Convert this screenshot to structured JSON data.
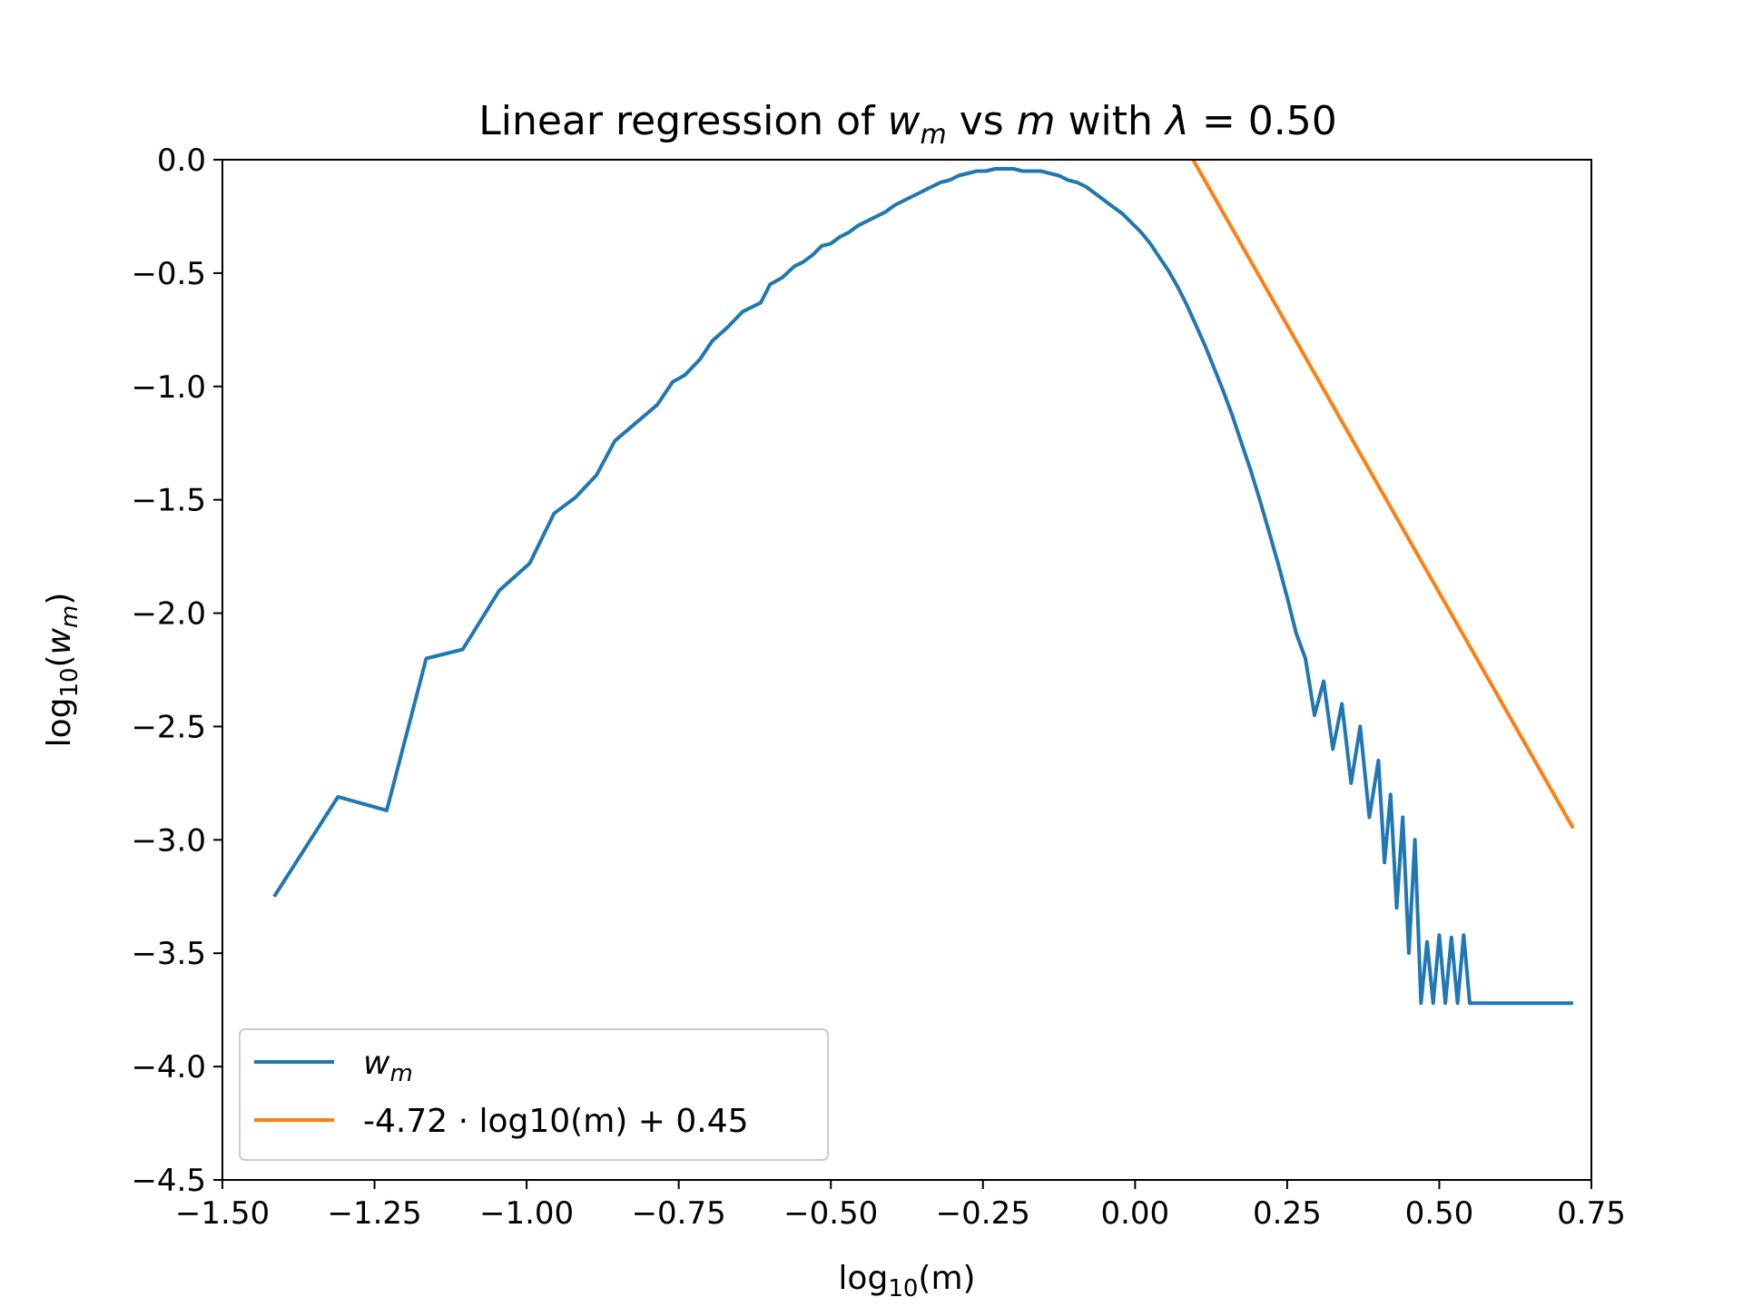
{
  "chart_data": {
    "type": "line",
    "title": {
      "prefix": "Linear regression of ",
      "var_w": "w",
      "sub_m": "m",
      "mid": " vs ",
      "var_m": "m",
      "suffix_pre": " with ",
      "lambda": "λ",
      "suffix_post": " = 0.50"
    },
    "xlabel": {
      "pre": "log",
      "sub": "10",
      "post": "(m)"
    },
    "ylabel": {
      "pre": "log",
      "sub": "10",
      "paren_open": "(",
      "var": "w",
      "var_sub": "m",
      "paren_close": ")"
    },
    "xlim": [
      -1.5,
      0.75
    ],
    "ylim": [
      -4.5,
      0.0
    ],
    "x_ticks": [
      -1.5,
      -1.25,
      -1.0,
      -0.75,
      -0.5,
      -0.25,
      0.0,
      0.25,
      0.5,
      0.75
    ],
    "x_tick_labels": [
      "−1.50",
      "−1.25",
      "−1.00",
      "−0.75",
      "−0.50",
      "−0.25",
      "0.00",
      "0.25",
      "0.50",
      "0.75"
    ],
    "y_ticks": [
      0.0,
      -0.5,
      -1.0,
      -1.5,
      -2.0,
      -2.5,
      -3.0,
      -3.5,
      -4.0,
      -4.5
    ],
    "y_tick_labels": [
      "0.0",
      "−0.5",
      "−1.0",
      "−1.5",
      "−2.0",
      "−2.5",
      "−3.0",
      "−3.5",
      "−4.0",
      "−4.5"
    ],
    "grid": false,
    "legend_position": "lower-left",
    "series": [
      {
        "name": "w",
        "name_sub": "m",
        "color": "#1f77b4",
        "x": [
          -1.415,
          -1.31,
          -1.23,
          -1.165,
          -1.105,
          -1.045,
          -0.995,
          -0.955,
          -0.92,
          -0.885,
          -0.855,
          -0.82,
          -0.785,
          -0.76,
          -0.74,
          -0.715,
          -0.695,
          -0.67,
          -0.645,
          -0.63,
          -0.615,
          -0.6,
          -0.58,
          -0.56,
          -0.545,
          -0.53,
          -0.515,
          -0.5,
          -0.485,
          -0.47,
          -0.455,
          -0.44,
          -0.425,
          -0.41,
          -0.395,
          -0.38,
          -0.365,
          -0.35,
          -0.335,
          -0.32,
          -0.305,
          -0.29,
          -0.275,
          -0.26,
          -0.245,
          -0.23,
          -0.215,
          -0.2,
          -0.185,
          -0.17,
          -0.155,
          -0.14,
          -0.125,
          -0.11,
          -0.095,
          -0.08,
          -0.065,
          -0.05,
          -0.035,
          -0.02,
          -0.005,
          0.01,
          0.025,
          0.04,
          0.055,
          0.07,
          0.085,
          0.1,
          0.115,
          0.13,
          0.145,
          0.16,
          0.175,
          0.19,
          0.205,
          0.22,
          0.235,
          0.25,
          0.265,
          0.28,
          0.295,
          0.31,
          0.325,
          0.34,
          0.355,
          0.37,
          0.385,
          0.4,
          0.41,
          0.42,
          0.43,
          0.44,
          0.45,
          0.46,
          0.47,
          0.48,
          0.49,
          0.5,
          0.51,
          0.52,
          0.53,
          0.54,
          0.55,
          0.56,
          0.57,
          0.58,
          0.59,
          0.6,
          0.61,
          0.62,
          0.63,
          0.64,
          0.65,
          0.66,
          0.67,
          0.68,
          0.69,
          0.7,
          0.72
        ],
        "y": [
          -3.25,
          -2.81,
          -2.87,
          -2.2,
          -2.16,
          -1.9,
          -1.78,
          -1.56,
          -1.49,
          -1.39,
          -1.24,
          -1.16,
          -1.08,
          -0.98,
          -0.95,
          -0.88,
          -0.8,
          -0.74,
          -0.67,
          -0.65,
          -0.63,
          -0.55,
          -0.52,
          -0.47,
          -0.45,
          -0.42,
          -0.38,
          -0.37,
          -0.34,
          -0.32,
          -0.29,
          -0.27,
          -0.25,
          -0.23,
          -0.2,
          -0.18,
          -0.16,
          -0.14,
          -0.12,
          -0.1,
          -0.09,
          -0.07,
          -0.06,
          -0.05,
          -0.05,
          -0.04,
          -0.04,
          -0.04,
          -0.05,
          -0.05,
          -0.05,
          -0.06,
          -0.07,
          -0.09,
          -0.1,
          -0.12,
          -0.15,
          -0.18,
          -0.21,
          -0.24,
          -0.28,
          -0.32,
          -0.37,
          -0.43,
          -0.49,
          -0.56,
          -0.64,
          -0.73,
          -0.82,
          -0.92,
          -1.02,
          -1.13,
          -1.25,
          -1.37,
          -1.5,
          -1.64,
          -1.78,
          -1.93,
          -2.09,
          -2.2,
          -2.45,
          -2.3,
          -2.6,
          -2.4,
          -2.75,
          -2.5,
          -2.9,
          -2.65,
          -3.1,
          -2.8,
          -3.3,
          -2.9,
          -3.5,
          -3.0,
          -3.72,
          -3.45,
          -3.72,
          -3.42,
          -3.72,
          -3.43,
          -3.72,
          -3.42,
          -3.72,
          -3.72,
          -3.72,
          -3.72,
          -3.72,
          -3.72,
          -3.72,
          -3.72,
          -3.72,
          -3.72,
          -3.72,
          -3.72,
          -3.72,
          -3.72,
          -3.72,
          -3.72,
          -3.72
        ]
      },
      {
        "name": "-4.72 · log10(m) + 0.45",
        "color": "#ff7f0e",
        "slope": -4.72,
        "intercept": 0.45,
        "x_range": [
          0.09,
          0.72
        ]
      }
    ]
  }
}
